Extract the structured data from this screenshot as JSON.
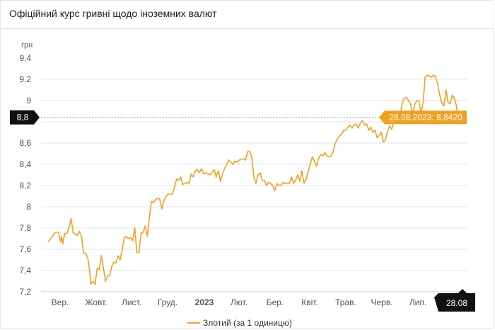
{
  "title": "Офіційний курс гривні щодо іноземних валют",
  "colors": {
    "line": "#f2a021",
    "marker_bg": "#111111",
    "tooltip_bg": "#f2a021"
  },
  "chart_data": {
    "type": "line",
    "title": "Офіційний курс гривні щодо іноземних валют",
    "ylabel": "грн",
    "ylim": [
      7.2,
      9.4
    ],
    "yticks": [
      "9,4",
      "9.2",
      "9",
      "8,8",
      "8,6",
      "8,4",
      "8,2",
      "8",
      "7,8",
      "7,6",
      "7,4",
      "7,2"
    ],
    "ytick_values": [
      9.4,
      9.2,
      9.0,
      8.8,
      8.6,
      8.4,
      8.2,
      8.0,
      7.8,
      7.6,
      7.4,
      7.2
    ],
    "xticks": [
      "Вер.",
      "Жовт.",
      "Лист.",
      "Груд.",
      "2023",
      "Лют.",
      "Бер.",
      "Квіт.",
      "Трав.",
      "Черв.",
      "Лип.",
      "28.08"
    ],
    "xtick_bold": [
      "2023"
    ],
    "grid": "horizontal",
    "legend": "bottom",
    "series": [
      {
        "name": "Злотий (за 1 одиницю)",
        "points": [
          [
            0,
            7.67
          ],
          [
            4,
            7.72
          ],
          [
            7,
            7.76
          ],
          [
            10,
            7.76
          ],
          [
            12,
            7.67
          ],
          [
            13,
            7.72
          ],
          [
            14,
            7.65
          ],
          [
            16,
            7.75
          ],
          [
            18,
            7.75
          ],
          [
            20,
            7.8
          ],
          [
            22,
            7.89
          ],
          [
            24,
            7.76
          ],
          [
            26,
            7.74
          ],
          [
            28,
            7.73
          ],
          [
            30,
            7.77
          ],
          [
            32,
            7.72
          ],
          [
            34,
            7.56
          ],
          [
            36,
            7.56
          ],
          [
            38,
            7.52
          ],
          [
            40,
            7.37
          ],
          [
            41,
            7.27
          ],
          [
            43,
            7.3
          ],
          [
            45,
            7.27
          ],
          [
            47,
            7.42
          ],
          [
            49,
            7.41
          ],
          [
            51,
            7.54
          ],
          [
            53,
            7.42
          ],
          [
            55,
            7.3
          ],
          [
            57,
            7.35
          ],
          [
            59,
            7.35
          ],
          [
            61,
            7.44
          ],
          [
            63,
            7.48
          ],
          [
            65,
            7.47
          ],
          [
            67,
            7.54
          ],
          [
            69,
            7.5
          ],
          [
            71,
            7.6
          ],
          [
            73,
            7.71
          ],
          [
            75,
            7.72
          ],
          [
            77,
            7.7
          ],
          [
            79,
            7.71
          ],
          [
            81,
            7.68
          ],
          [
            83,
            7.8
          ],
          [
            85,
            7.57
          ],
          [
            87,
            7.57
          ],
          [
            89,
            7.75
          ],
          [
            91,
            7.76
          ],
          [
            93,
            7.82
          ],
          [
            95,
            7.72
          ],
          [
            97,
            7.9
          ],
          [
            99,
            8.05
          ],
          [
            101,
            8.04
          ],
          [
            103,
            8.07
          ],
          [
            105,
            8.08
          ],
          [
            107,
            8.07
          ],
          [
            109,
            7.98
          ],
          [
            111,
            8.06
          ],
          [
            113,
            8.1
          ],
          [
            115,
            8.12
          ],
          [
            117,
            8.12
          ],
          [
            119,
            8.12
          ],
          [
            121,
            8.18
          ],
          [
            123,
            8.26
          ],
          [
            125,
            8.25
          ],
          [
            127,
            8.28
          ],
          [
            129,
            8.21
          ],
          [
            131,
            8.22
          ],
          [
            133,
            8.23
          ],
          [
            135,
            8.22
          ],
          [
            137,
            8.31
          ],
          [
            139,
            8.28
          ],
          [
            141,
            8.34
          ],
          [
            143,
            8.35
          ],
          [
            145,
            8.32
          ],
          [
            147,
            8.36
          ],
          [
            149,
            8.31
          ],
          [
            151,
            8.32
          ],
          [
            153,
            8.31
          ],
          [
            155,
            8.3
          ],
          [
            157,
            8.32
          ],
          [
            159,
            8.35
          ],
          [
            161,
            8.28
          ],
          [
            163,
            8.34
          ],
          [
            165,
            8.24
          ],
          [
            167,
            8.31
          ],
          [
            169,
            8.36
          ],
          [
            171,
            8.4
          ],
          [
            173,
            8.44
          ],
          [
            175,
            8.42
          ],
          [
            177,
            8.4
          ],
          [
            179,
            8.43
          ],
          [
            181,
            8.42
          ],
          [
            183,
            8.44
          ],
          [
            185,
            8.45
          ],
          [
            187,
            8.45
          ],
          [
            189,
            8.44
          ],
          [
            191,
            8.52
          ],
          [
            193,
            8.52
          ],
          [
            195,
            8.47
          ],
          [
            197,
            8.28
          ],
          [
            199,
            8.22
          ],
          [
            201,
            8.3
          ],
          [
            203,
            8.32
          ],
          [
            205,
            8.25
          ],
          [
            207,
            8.25
          ],
          [
            209,
            8.2
          ],
          [
            211,
            8.23
          ],
          [
            213,
            8.22
          ],
          [
            215,
            8.2
          ],
          [
            217,
            8.15
          ],
          [
            219,
            8.22
          ],
          [
            221,
            8.2
          ],
          [
            223,
            8.2
          ],
          [
            225,
            8.23
          ],
          [
            227,
            8.22
          ],
          [
            229,
            8.22
          ],
          [
            231,
            8.22
          ],
          [
            233,
            8.28
          ],
          [
            235,
            8.22
          ],
          [
            237,
            8.25
          ],
          [
            239,
            8.3
          ],
          [
            241,
            8.24
          ],
          [
            243,
            8.34
          ],
          [
            245,
            8.22
          ],
          [
            247,
            8.26
          ],
          [
            249,
            8.33
          ],
          [
            251,
            8.4
          ],
          [
            253,
            8.47
          ],
          [
            255,
            8.43
          ],
          [
            257,
            8.38
          ],
          [
            259,
            8.46
          ],
          [
            261,
            8.49
          ],
          [
            263,
            8.48
          ],
          [
            265,
            8.51
          ],
          [
            267,
            8.48
          ],
          [
            269,
            8.47
          ],
          [
            271,
            8.48
          ],
          [
            273,
            8.52
          ],
          [
            275,
            8.6
          ],
          [
            277,
            8.64
          ],
          [
            279,
            8.67
          ],
          [
            281,
            8.68
          ],
          [
            283,
            8.72
          ],
          [
            285,
            8.72
          ],
          [
            287,
            8.75
          ],
          [
            289,
            8.77
          ],
          [
            291,
            8.74
          ],
          [
            293,
            8.77
          ],
          [
            295,
            8.78
          ],
          [
            297,
            8.74
          ],
          [
            299,
            8.79
          ],
          [
            301,
            8.81
          ],
          [
            303,
            8.77
          ],
          [
            305,
            8.78
          ],
          [
            307,
            8.72
          ],
          [
            309,
            8.75
          ],
          [
            311,
            8.7
          ],
          [
            313,
            8.72
          ],
          [
            315,
            8.65
          ],
          [
            317,
            8.67
          ],
          [
            319,
            8.7
          ],
          [
            321,
            8.61
          ],
          [
            323,
            8.63
          ],
          [
            325,
            8.71
          ],
          [
            327,
            8.76
          ],
          [
            329,
            8.73
          ],
          [
            331,
            8.8
          ],
          [
            333,
            8.82
          ],
          [
            335,
            8.88
          ],
          [
            337,
            8.86
          ],
          [
            339,
            8.97
          ],
          [
            341,
            9.02
          ],
          [
            343,
            9.03
          ],
          [
            345,
            9.0
          ],
          [
            347,
            8.97
          ],
          [
            349,
            8.88
          ],
          [
            351,
            8.96
          ],
          [
            353,
            9.0
          ],
          [
            355,
            9.0
          ],
          [
            357,
            8.88
          ],
          [
            359,
            8.98
          ],
          [
            361,
            9.22
          ],
          [
            363,
            9.24
          ],
          [
            365,
            9.23
          ],
          [
            367,
            9.22
          ],
          [
            369,
            9.24
          ],
          [
            371,
            9.22
          ],
          [
            373,
            9.16
          ],
          [
            375,
            9.05
          ],
          [
            377,
            8.98
          ],
          [
            379,
            8.95
          ],
          [
            381,
            9.1
          ],
          [
            383,
            8.98
          ],
          [
            385,
            8.97
          ],
          [
            387,
            9.05
          ],
          [
            389,
            9.02
          ],
          [
            391,
            8.95
          ],
          [
            392,
            8.84
          ]
        ],
        "x_day0": "2022-08-25",
        "x_dayN": "2023-08-28"
      }
    ],
    "tooltip": {
      "label": "28.08.2023: 8,8420",
      "value": 8.842
    },
    "y_marker": {
      "label": "8,8",
      "value": 8.8
    },
    "x_marker": {
      "label": "28.08"
    }
  }
}
